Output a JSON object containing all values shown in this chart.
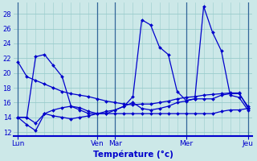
{
  "xlabel": "Température (°c)",
  "bg_color": "#cce8e8",
  "line_color": "#0000cc",
  "grid_color": "#99cccc",
  "vline_color": "#336699",
  "ylim": [
    11.5,
    29.5
  ],
  "yticks": [
    12,
    14,
    16,
    18,
    20,
    22,
    24,
    26,
    28
  ],
  "day_labels": [
    "Lun",
    "Ven",
    "Mar",
    "Mer",
    "Jeu"
  ],
  "day_positions": [
    0,
    9,
    11,
    19,
    26
  ],
  "xlim": [
    -0.5,
    26.5
  ],
  "lines": [
    [
      21.5,
      19.5,
      19.0,
      18.5,
      18.0,
      17.5,
      17.2,
      17.0,
      16.8,
      16.5,
      16.2,
      16.0,
      15.8,
      15.7,
      15.8,
      15.8,
      16.0,
      16.2,
      16.5,
      16.7,
      16.8,
      17.0,
      17.1,
      17.2,
      17.3,
      17.3,
      15.3
    ],
    [
      14.0,
      13.0,
      12.2,
      14.5,
      15.0,
      15.3,
      15.5,
      15.3,
      14.8,
      14.5,
      14.8,
      15.0,
      15.5,
      16.8,
      27.2,
      26.5,
      23.5,
      22.5,
      17.5,
      16.3,
      16.5,
      29.0,
      25.5,
      23.0,
      17.0,
      16.7,
      15.0
    ],
    [
      14.0,
      14.0,
      22.2,
      22.5,
      21.0,
      19.5,
      15.5,
      15.0,
      14.5,
      14.5,
      14.5,
      15.0,
      15.5,
      16.0,
      15.2,
      15.0,
      15.2,
      15.5,
      16.0,
      16.2,
      16.5,
      16.5,
      16.5,
      17.0,
      17.2,
      17.2,
      15.5
    ],
    [
      14.0,
      14.0,
      13.2,
      14.5,
      14.2,
      14.0,
      13.8,
      14.0,
      14.2,
      14.5,
      14.5,
      14.5,
      14.5,
      14.5,
      14.5,
      14.5,
      14.5,
      14.5,
      14.5,
      14.5,
      14.5,
      14.5,
      14.5,
      14.8,
      15.0,
      15.0,
      15.2
    ]
  ]
}
